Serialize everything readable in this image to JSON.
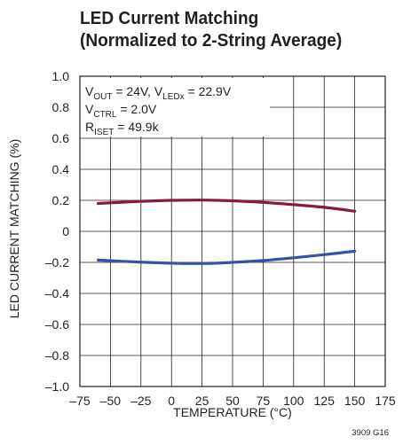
{
  "chart_data": {
    "type": "line",
    "title_line1": "LED Current Matching",
    "title_line2": "(Normalized to 2-String Average)",
    "xlabel": "TEMPERATURE (°C)",
    "ylabel": "LED CURRENT MATCHING (%)",
    "xlim": [
      -75,
      175
    ],
    "ylim": [
      -1.0,
      1.0
    ],
    "x_ticks": [
      -75,
      -50,
      -25,
      0,
      25,
      50,
      75,
      100,
      125,
      150,
      175
    ],
    "x_tick_labels": [
      "–75",
      "–50",
      "–25",
      "0",
      "25",
      "50",
      "75",
      "100",
      "125",
      "150",
      "175"
    ],
    "y_ticks": [
      -1.0,
      -0.8,
      -0.6,
      -0.4,
      -0.2,
      0,
      0.2,
      0.4,
      0.6,
      0.8,
      1.0
    ],
    "y_tick_labels": [
      "–1.0",
      "–0.8",
      "–0.6",
      "–0.4",
      "–0.2",
      "0",
      "0.2",
      "0.4",
      "0.6",
      "0.8",
      "1.0"
    ],
    "grid": true,
    "annotations": {
      "line1": {
        "a": "V",
        "a_sub": "OUT",
        "b": " = 24V, V",
        "b_sub": "LEDx",
        "c": " = 22.9V"
      },
      "line2": {
        "a": "V",
        "a_sub": "CTRL",
        "b": " = 2.0V"
      },
      "line3": {
        "a": "R",
        "a_sub": "ISET",
        "b": " = 49.9k"
      }
    },
    "series": [
      {
        "color": "#8b1a3a",
        "x": [
          -60,
          -40,
          -20,
          0,
          25,
          50,
          75,
          100,
          125,
          150
        ],
        "y": [
          0.18,
          0.188,
          0.195,
          0.2,
          0.202,
          0.197,
          0.187,
          0.172,
          0.155,
          0.13
        ]
      },
      {
        "color": "#3553a6",
        "x": [
          -60,
          -40,
          -20,
          0,
          25,
          50,
          75,
          100,
          125,
          150
        ],
        "y": [
          -0.185,
          -0.193,
          -0.2,
          -0.205,
          -0.207,
          -0.2,
          -0.188,
          -0.17,
          -0.15,
          -0.128
        ]
      }
    ],
    "figure_id": "3909 G16"
  }
}
